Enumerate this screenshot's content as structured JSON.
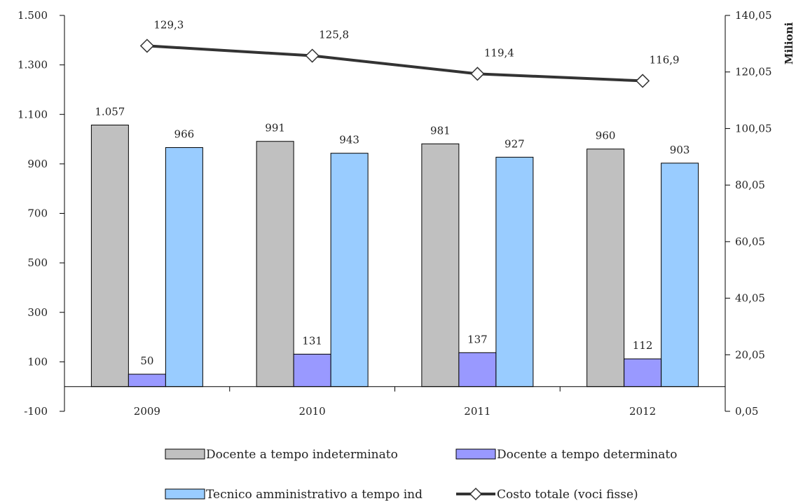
{
  "chart_data": {
    "type": "bar",
    "categories": [
      "2009",
      "2010",
      "2011",
      "2012"
    ],
    "series": [
      {
        "name": "Docente a tempo indeterminato",
        "values": [
          1057,
          991,
          981,
          960
        ],
        "labels": [
          "1.057",
          "991",
          "981",
          "960"
        ],
        "color": "#c0c0c0",
        "axis": "left"
      },
      {
        "name": "Docente a tempo determinato",
        "values": [
          50,
          131,
          137,
          112
        ],
        "labels": [
          "50",
          "131",
          "137",
          "112"
        ],
        "color": "#9999ff",
        "axis": "left"
      },
      {
        "name": "Tecnico amministrativo a tempo ind",
        "values": [
          966,
          943,
          927,
          903
        ],
        "labels": [
          "966",
          "943",
          "927",
          "903"
        ],
        "color": "#99ccff",
        "axis": "left"
      },
      {
        "name": "Costo totale (voci fisse)",
        "type": "line",
        "values": [
          129.3,
          125.8,
          119.4,
          116.9
        ],
        "labels": [
          "129,3",
          "125,8",
          "119,4",
          "116,9"
        ],
        "color": "#333333",
        "marker": "diamond",
        "axis": "right"
      }
    ],
    "left_axis": {
      "ylim": [
        -100,
        1500
      ],
      "ticks": [
        -100,
        100,
        300,
        500,
        700,
        900,
        1100,
        1300,
        1500
      ],
      "tick_labels": [
        "-100",
        "100",
        "300",
        "500",
        "700",
        "900",
        "1.100",
        "1.300",
        "1.500"
      ]
    },
    "right_axis": {
      "ylim": [
        0.05,
        140.05
      ],
      "ticks": [
        0.05,
        20.05,
        40.05,
        60.05,
        80.05,
        100.05,
        120.05,
        140.05
      ],
      "tick_labels": [
        "0,05",
        "20,05",
        "40,05",
        "60,05",
        "80,05",
        "100,05",
        "120,05",
        "140,05"
      ],
      "label": "Milioni"
    },
    "legend_position": "bottom",
    "grid": false
  }
}
